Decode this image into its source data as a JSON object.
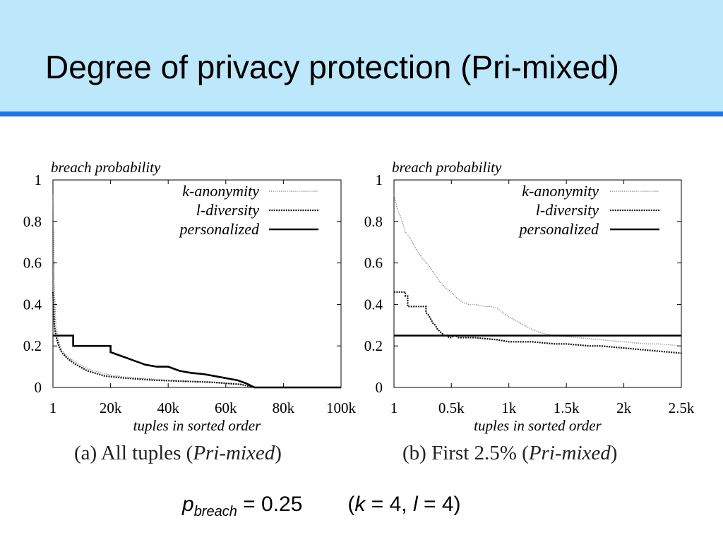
{
  "slide": {
    "title": "Degree of privacy protection (Pri-mixed)",
    "footnote": {
      "p": "p",
      "p_sub": "breach",
      "eq1": " = 0.25",
      "paren_open": "(",
      "k": "k",
      "eq_k": " = 4, ",
      "l": "l",
      "eq_l": " = 4)"
    }
  },
  "colors": {
    "title_bg": "#bde7fb",
    "title_rule": "#1e73e8"
  },
  "chart_data": [
    {
      "type": "line",
      "caption_prefix": "(a) All tuples (",
      "caption_italic": "Pri-mixed",
      "caption_suffix": ")",
      "ylabel": "breach probability",
      "xlabel": "tuples in sorted order",
      "xlim": [
        1,
        100000
      ],
      "ylim": [
        0,
        1
      ],
      "xticks": [
        1,
        20000,
        40000,
        60000,
        80000,
        100000
      ],
      "xticklabels": [
        "1",
        "20k",
        "40k",
        "60k",
        "80k",
        "100k"
      ],
      "yticks": [
        0,
        0.2,
        0.4,
        0.6,
        0.8,
        1
      ],
      "yticklabels": [
        "0",
        "0.2",
        "0.4",
        "0.6",
        "0.8",
        "1"
      ],
      "legend_position": "top-right",
      "series": [
        {
          "name": "k-anonymity",
          "style": "dotted-light",
          "x": [
            1,
            300,
            600,
            1000,
            2000,
            3000,
            5000,
            8000,
            12000,
            18000,
            25000,
            35000,
            45000,
            55000,
            65000,
            70000,
            100000
          ],
          "y": [
            0.93,
            0.7,
            0.45,
            0.3,
            0.22,
            0.18,
            0.15,
            0.12,
            0.09,
            0.065,
            0.05,
            0.04,
            0.03,
            0.025,
            0.015,
            0.0,
            0.0
          ]
        },
        {
          "name": "l-diversity",
          "style": "dotted-dark",
          "x": [
            1,
            200,
            500,
            1000,
            2000,
            3000,
            5000,
            8000,
            12000,
            18000,
            25000,
            35000,
            45000,
            55000,
            65000,
            70000,
            100000
          ],
          "y": [
            0.46,
            0.4,
            0.3,
            0.25,
            0.2,
            0.17,
            0.14,
            0.11,
            0.08,
            0.055,
            0.045,
            0.035,
            0.03,
            0.025,
            0.015,
            0.0,
            0.0
          ]
        },
        {
          "name": "personalized",
          "style": "solid",
          "x": [
            1,
            5000,
            7000,
            7000,
            20000,
            20000,
            22000,
            24000,
            26000,
            28000,
            30000,
            32000,
            36000,
            40000,
            44000,
            48000,
            52000,
            56000,
            60000,
            64000,
            67000,
            70000,
            100000
          ],
          "y": [
            0.25,
            0.25,
            0.25,
            0.2,
            0.2,
            0.17,
            0.16,
            0.15,
            0.14,
            0.13,
            0.12,
            0.11,
            0.1,
            0.1,
            0.08,
            0.07,
            0.065,
            0.055,
            0.045,
            0.035,
            0.02,
            0.0,
            0.0
          ]
        }
      ]
    },
    {
      "type": "line",
      "caption_prefix": "(b) First 2.5% (",
      "caption_italic": "Pri-mixed",
      "caption_suffix": ")",
      "ylabel": "breach probability",
      "xlabel": "tuples in sorted order",
      "xlim": [
        1,
        2500
      ],
      "ylim": [
        0,
        1
      ],
      "xticks": [
        1,
        500,
        1000,
        1500,
        2000,
        2500
      ],
      "xticklabels": [
        "1",
        "0.5k",
        "1k",
        "1.5k",
        "2k",
        "2.5k"
      ],
      "yticks": [
        0,
        0.2,
        0.4,
        0.6,
        0.8,
        1
      ],
      "yticklabels": [
        "0",
        "0.2",
        "0.4",
        "0.6",
        "0.8",
        "1"
      ],
      "legend_position": "top-right",
      "series": [
        {
          "name": "k-anonymity",
          "style": "dotted-light",
          "x": [
            1,
            30,
            60,
            100,
            150,
            200,
            250,
            300,
            350,
            400,
            450,
            500,
            550,
            600,
            650,
            700,
            750,
            800,
            850,
            900,
            950,
            1000,
            1100,
            1200,
            1300,
            1400,
            1500,
            1600,
            1700,
            1800,
            1900,
            2000,
            2100,
            2200,
            2300,
            2400,
            2500
          ],
          "y": [
            0.93,
            0.86,
            0.82,
            0.75,
            0.71,
            0.66,
            0.62,
            0.59,
            0.55,
            0.51,
            0.48,
            0.46,
            0.43,
            0.41,
            0.4,
            0.4,
            0.395,
            0.39,
            0.39,
            0.38,
            0.36,
            0.34,
            0.31,
            0.28,
            0.26,
            0.25,
            0.245,
            0.24,
            0.235,
            0.23,
            0.225,
            0.22,
            0.215,
            0.21,
            0.21,
            0.205,
            0.2
          ]
        },
        {
          "name": "l-diversity",
          "style": "dotted-dark",
          "x": [
            1,
            100,
            100,
            120,
            120,
            280,
            280,
            300,
            320,
            340,
            360,
            380,
            400,
            420,
            440,
            460,
            480,
            500,
            520,
            540,
            560,
            580,
            600,
            700,
            800,
            900,
            1000,
            1100,
            1200,
            1300,
            1400,
            1500,
            1600,
            1700,
            1800,
            1900,
            2000,
            2100,
            2200,
            2300,
            2400,
            2500
          ],
          "y": [
            0.46,
            0.46,
            0.44,
            0.44,
            0.39,
            0.39,
            0.36,
            0.35,
            0.33,
            0.31,
            0.3,
            0.28,
            0.27,
            0.26,
            0.25,
            0.25,
            0.24,
            0.24,
            0.25,
            0.25,
            0.24,
            0.24,
            0.24,
            0.24,
            0.235,
            0.23,
            0.22,
            0.22,
            0.22,
            0.215,
            0.21,
            0.21,
            0.205,
            0.2,
            0.2,
            0.195,
            0.19,
            0.185,
            0.18,
            0.175,
            0.17,
            0.165
          ]
        },
        {
          "name": "personalized",
          "style": "solid",
          "x": [
            1,
            2500
          ],
          "y": [
            0.25,
            0.25
          ]
        }
      ]
    }
  ]
}
